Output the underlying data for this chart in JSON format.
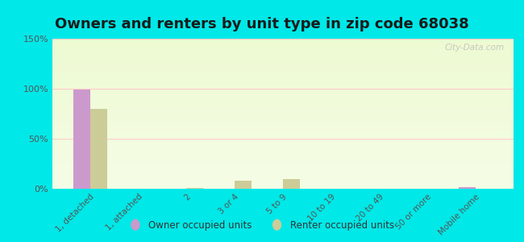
{
  "title": "Owners and renters by unit type in zip code 68038",
  "categories": [
    "1, detached",
    "1, attached",
    "2",
    "3 or 4",
    "5 to 9",
    "10 to 19",
    "20 to 49",
    "50 or more",
    "Mobile home"
  ],
  "owner_values": [
    99,
    0,
    0,
    0,
    0,
    0,
    0,
    0,
    2
  ],
  "renter_values": [
    80,
    0,
    1,
    8,
    10,
    0,
    0,
    0,
    0
  ],
  "owner_color": "#cc99cc",
  "renter_color": "#cccc99",
  "outer_bg": "#00e8e8",
  "ylim": [
    0,
    150
  ],
  "yticks": [
    0,
    50,
    100,
    150
  ],
  "ytick_labels": [
    "0%",
    "50%",
    "100%",
    "150%"
  ],
  "bar_width": 0.35,
  "title_fontsize": 13,
  "watermark": "City-Data.com",
  "grid_color": "#ffcccc",
  "tick_color": "#555555"
}
